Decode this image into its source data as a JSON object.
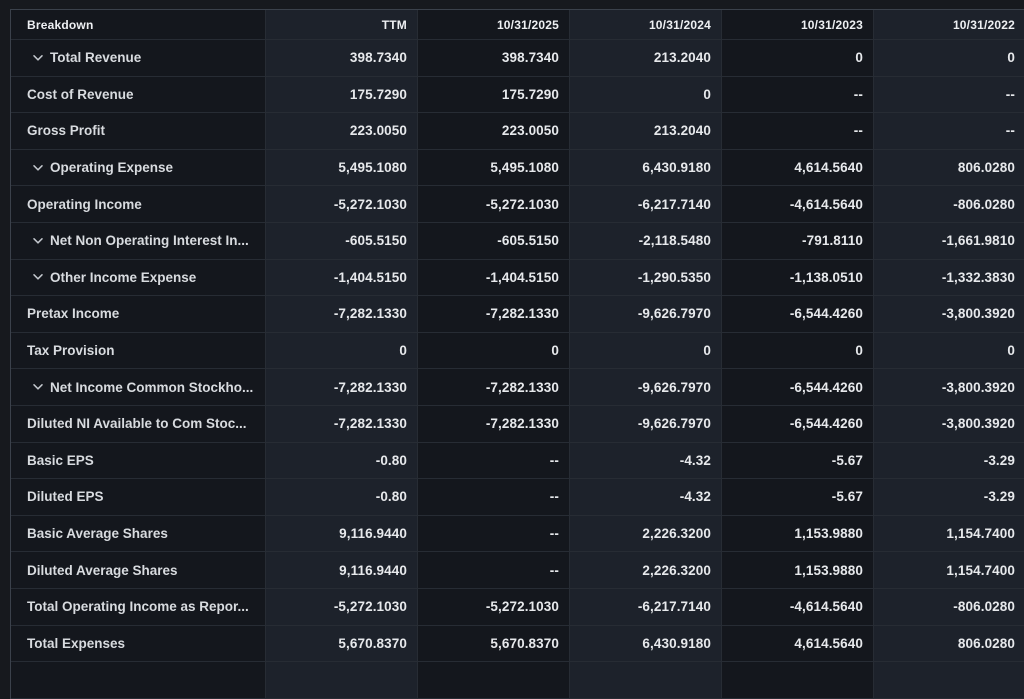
{
  "table": {
    "columns": [
      {
        "label": "Breakdown",
        "shade": "dark",
        "align": "left"
      },
      {
        "label": "TTM",
        "shade": "light",
        "align": "right"
      },
      {
        "label": "10/31/2025",
        "shade": "dark",
        "align": "right"
      },
      {
        "label": "10/31/2024",
        "shade": "light",
        "align": "right"
      },
      {
        "label": "10/31/2023",
        "shade": "dark",
        "align": "right"
      },
      {
        "label": "10/31/2022",
        "shade": "light",
        "align": "right"
      }
    ],
    "rows": [
      {
        "label": "Total Revenue",
        "expandable": true,
        "values": [
          "398.7340",
          "398.7340",
          "213.2040",
          "0",
          "0"
        ]
      },
      {
        "label": "Cost of Revenue",
        "expandable": false,
        "values": [
          "175.7290",
          "175.7290",
          "0",
          "--",
          "--"
        ]
      },
      {
        "label": "Gross Profit",
        "expandable": false,
        "values": [
          "223.0050",
          "223.0050",
          "213.2040",
          "--",
          "--"
        ]
      },
      {
        "label": "Operating Expense",
        "expandable": true,
        "values": [
          "5,495.1080",
          "5,495.1080",
          "6,430.9180",
          "4,614.5640",
          "806.0280"
        ]
      },
      {
        "label": "Operating Income",
        "expandable": false,
        "values": [
          "-5,272.1030",
          "-5,272.1030",
          "-6,217.7140",
          "-4,614.5640",
          "-806.0280"
        ]
      },
      {
        "label": "Net Non Operating Interest In...",
        "expandable": true,
        "values": [
          "-605.5150",
          "-605.5150",
          "-2,118.5480",
          "-791.8110",
          "-1,661.9810"
        ]
      },
      {
        "label": "Other Income Expense",
        "expandable": true,
        "values": [
          "-1,404.5150",
          "-1,404.5150",
          "-1,290.5350",
          "-1,138.0510",
          "-1,332.3830"
        ]
      },
      {
        "label": "Pretax Income",
        "expandable": false,
        "values": [
          "-7,282.1330",
          "-7,282.1330",
          "-9,626.7970",
          "-6,544.4260",
          "-3,800.3920"
        ]
      },
      {
        "label": "Tax Provision",
        "expandable": false,
        "values": [
          "0",
          "0",
          "0",
          "0",
          "0"
        ]
      },
      {
        "label": "Net Income Common Stockho...",
        "expandable": true,
        "values": [
          "-7,282.1330",
          "-7,282.1330",
          "-9,626.7970",
          "-6,544.4260",
          "-3,800.3920"
        ]
      },
      {
        "label": "Diluted NI Available to Com Stoc...",
        "expandable": false,
        "values": [
          "-7,282.1330",
          "-7,282.1330",
          "-9,626.7970",
          "-6,544.4260",
          "-3,800.3920"
        ]
      },
      {
        "label": "Basic EPS",
        "expandable": false,
        "values": [
          "-0.80",
          "--",
          "-4.32",
          "-5.67",
          "-3.29"
        ]
      },
      {
        "label": "Diluted EPS",
        "expandable": false,
        "values": [
          "-0.80",
          "--",
          "-4.32",
          "-5.67",
          "-3.29"
        ]
      },
      {
        "label": "Basic Average Shares",
        "expandable": false,
        "values": [
          "9,116.9440",
          "--",
          "2,226.3200",
          "1,153.9880",
          "1,154.7400"
        ]
      },
      {
        "label": "Diluted Average Shares",
        "expandable": false,
        "values": [
          "9,116.9440",
          "--",
          "2,226.3200",
          "1,153.9880",
          "1,154.7400"
        ]
      },
      {
        "label": "Total Operating Income as Repor...",
        "expandable": false,
        "values": [
          "-5,272.1030",
          "-5,272.1030",
          "-6,217.7140",
          "-4,614.5640",
          "-806.0280"
        ]
      },
      {
        "label": "Total Expenses",
        "expandable": false,
        "values": [
          "5,670.8370",
          "5,670.8370",
          "6,430.9180",
          "4,614.5640",
          "806.0280"
        ]
      }
    ],
    "partial_row_visible": true,
    "colors": {
      "page_background": "#17191e",
      "column_dark": "#14171d",
      "column_light": "#1d222b",
      "grid_border": "#272c34",
      "outer_border": "#3b414b",
      "header_text": "#eef0f3",
      "label_text": "#d8dbdf",
      "value_text": "#e7e9ec",
      "chevron": "#c4c8ce"
    },
    "icons": {
      "expand": "chevron-down-icon"
    }
  }
}
